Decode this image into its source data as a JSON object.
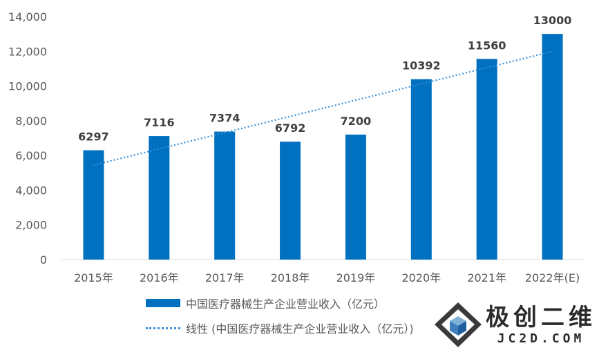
{
  "chart_data": {
    "type": "bar",
    "categories": [
      "2015年",
      "2016年",
      "2017年",
      "2018年",
      "2019年",
      "2020年",
      "2021年",
      "2022年(E)"
    ],
    "values": [
      6297,
      7116,
      7374,
      6792,
      7200,
      10392,
      11560,
      13000
    ],
    "data_labels": [
      "6297",
      "7116",
      "7374",
      "6792",
      "7200",
      "10392",
      "11560",
      "13000"
    ],
    "series": [
      {
        "name": "中国医疗器械生产企业营业收入（亿元）",
        "values": [
          6297,
          7116,
          7374,
          6792,
          7200,
          10392,
          11560,
          13000
        ]
      }
    ],
    "trendline": {
      "name": "线性 (中国医疗器械生产企业营业收入（亿元）)",
      "type": "linear"
    },
    "title": "",
    "xlabel": "",
    "ylabel": "",
    "ylim": [
      0,
      14000
    ],
    "yticks": [
      0,
      2000,
      4000,
      6000,
      8000,
      10000,
      12000,
      14000
    ],
    "ytick_labels": [
      "0",
      "2,000",
      "4,000",
      "6,000",
      "8,000",
      "10,000",
      "12,000",
      "14,000"
    ],
    "grid": false,
    "legend_position": "bottom",
    "colors": {
      "bar": "#0070c0",
      "trendline": "#3a8fd8",
      "axis": "#d9d9d9"
    }
  },
  "legend": {
    "bar_label": "中国医疗器械生产企业营业收入（亿元）",
    "trend_label": "线性 (中国医疗器械生产企业营业收入（亿元）)"
  },
  "watermark": {
    "title": "极创二维",
    "domain": "JC2D.COM",
    "logo_icon": "cube-icon"
  }
}
